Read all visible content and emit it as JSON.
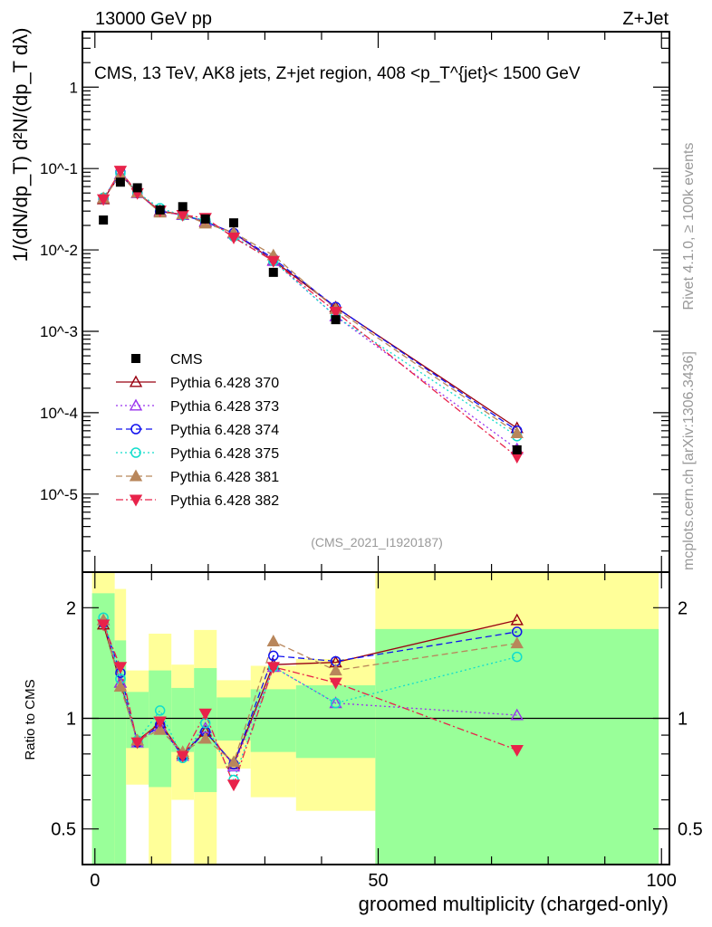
{
  "chart_data": [
    {
      "type": "scatter",
      "panel": "main",
      "top_left_label": "13000 GeV pp",
      "top_right_label": "Z+Jet",
      "title": "CMS, 13 TeV, AK8 jets, Z+jet region, 408 <p_T^{jet}< 1500 GeV",
      "side_label_1": "Rivet 4.1.0, ≥ 100k events",
      "side_label_2": "mcplots.cern.ch [arXiv:1306.3436]",
      "analysis_label": "(CMS_2021_I1920187)",
      "ylabel": "1/(dN/dp_T) d²N/(dp_T dλ)",
      "yscale": "log",
      "ylim": [
        1.1e-06,
        4.8
      ],
      "xlim": [
        -2.2,
        101.4
      ],
      "ytick_labels": [
        "1",
        "10^-1",
        "10^-2",
        "10^-3",
        "10^-4",
        "10^-5"
      ],
      "ytick_values": [
        1,
        0.1,
        0.01,
        0.001,
        0.0001,
        1e-05
      ],
      "legend_position": "bottom-left",
      "x": [
        1.5,
        4.5,
        7.5,
        11.5,
        15.5,
        19.5,
        24.5,
        31.5,
        42.5,
        74.5
      ],
      "data": {
        "name": "CMS",
        "color": "#000000",
        "values": [
          0.0233,
          0.068,
          0.058,
          0.031,
          0.034,
          0.024,
          0.0215,
          0.0053,
          0.00139,
          3.5e-05
        ]
      },
      "series": [
        {
          "name": "Pythia 6.428 370",
          "color": "#990011",
          "marker": "open-triangle-up",
          "dash": "solid",
          "ratio": [
            1.8,
            1.25,
            0.87,
            0.97,
            0.8,
            0.92,
            0.75,
            1.4,
            1.42,
            1.85
          ]
        },
        {
          "name": "Pythia 6.428 373",
          "color": "#9933ee",
          "marker": "open-triangle-up",
          "dash": "dotted",
          "ratio": [
            1.85,
            1.25,
            0.86,
            0.95,
            0.79,
            0.94,
            0.74,
            1.38,
            1.1,
            1.02
          ]
        },
        {
          "name": "Pythia 6.428 374",
          "color": "#1111ee",
          "marker": "open-circle",
          "dash": "dashed",
          "ratio": [
            1.82,
            1.33,
            0.86,
            0.96,
            0.79,
            0.92,
            0.75,
            1.48,
            1.43,
            1.72
          ]
        },
        {
          "name": "Pythia 6.428 375",
          "color": "#11ddcc",
          "marker": "open-circle",
          "dash": "dotted",
          "ratio": [
            1.88,
            1.28,
            0.87,
            1.05,
            0.78,
            0.97,
            0.68,
            1.38,
            1.1,
            1.47
          ]
        },
        {
          "name": "Pythia 6.428 381",
          "color": "#b8865b",
          "marker": "filled-triangle-up",
          "dash": "dashed",
          "ratio": [
            1.85,
            1.22,
            0.87,
            0.93,
            0.81,
            0.88,
            0.76,
            1.62,
            1.35,
            1.6
          ]
        },
        {
          "name": "Pythia 6.428 382",
          "color": "#e8234a",
          "marker": "filled-triangle-down",
          "dash": "dashdot",
          "ratio": [
            1.8,
            1.38,
            0.86,
            0.98,
            0.79,
            1.03,
            0.66,
            1.38,
            1.25,
            0.82
          ]
        }
      ]
    },
    {
      "type": "scatter",
      "panel": "ratio",
      "ylabel": "Ratio to CMS",
      "xlabel": "groomed multiplicity (charged-only)",
      "yscale": "log",
      "ylim": [
        0.4,
        2.5
      ],
      "xtick_labels": [
        "0",
        "50",
        "100"
      ],
      "xtick_values": [
        0,
        50,
        100
      ],
      "ytick_labels": [
        "0.5",
        "1",
        "2"
      ],
      "ytick_values": [
        0.5,
        1,
        2
      ],
      "bin_edges": [
        -0.5,
        3.5,
        5.5,
        9.5,
        13.5,
        17.5,
        21.5,
        27.5,
        35.5,
        49.5,
        99.5
      ],
      "stat_band": [
        [
          0.3,
          2.19
        ],
        [
          0.3,
          1.63
        ],
        [
          0.83,
          1.18
        ],
        [
          0.65,
          1.35
        ],
        [
          0.81,
          1.21
        ],
        [
          0.63,
          1.37
        ],
        [
          0.87,
          1.14
        ],
        [
          0.81,
          1.2
        ],
        [
          0.78,
          1.23
        ],
        [
          0.3,
          1.75
        ]
      ],
      "total_band": [
        [
          0.3,
          3.0
        ],
        [
          0.3,
          2.25
        ],
        [
          0.66,
          1.35
        ],
        [
          0.3,
          1.7
        ],
        [
          0.6,
          1.4
        ],
        [
          0.3,
          1.74
        ],
        [
          0.73,
          1.27
        ],
        [
          0.61,
          1.39
        ],
        [
          0.56,
          1.45
        ],
        [
          0.3,
          3.0
        ]
      ],
      "stat_color": "#99ff99",
      "total_color": "#ffff99"
    }
  ]
}
